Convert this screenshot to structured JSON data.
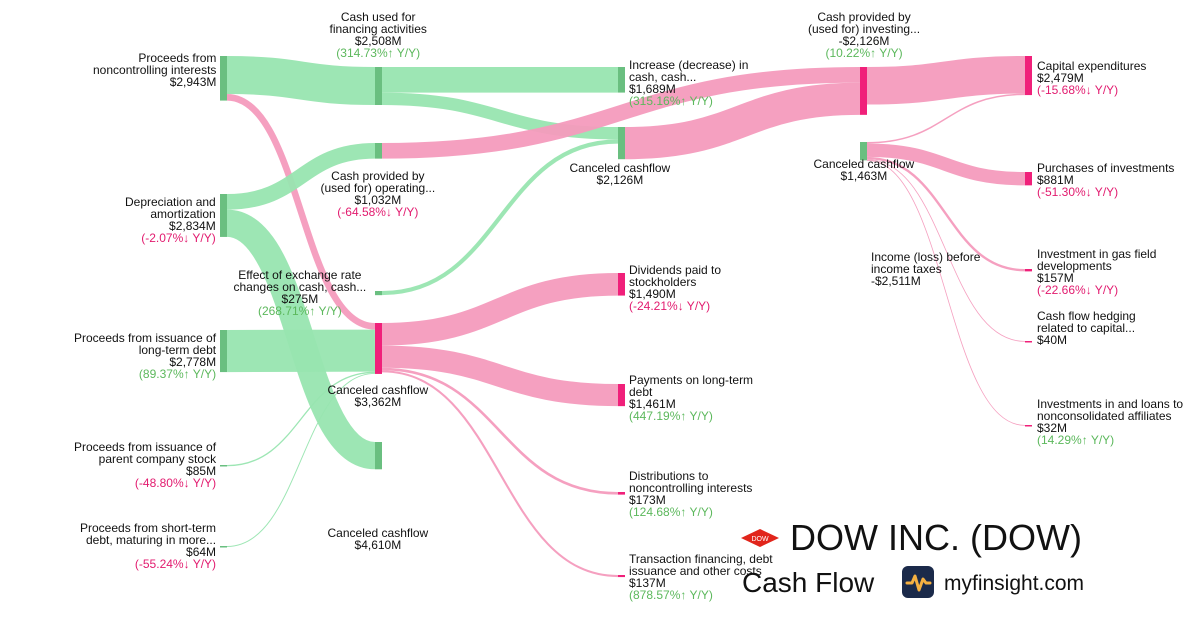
{
  "brand": {
    "company": "DOW INC. (DOW)",
    "statement": "Cash Flow",
    "site": "myfinsight.com",
    "logo_text": "DOW",
    "icon": "pulse-icon"
  },
  "colors": {
    "inflow": "#98e5b0",
    "outflow": "#f49bbd",
    "positive": "#5cb85c",
    "negative": "#e21b6f",
    "node_green": "#6abf80",
    "node_pink": "#f0207a"
  },
  "chart_data": {
    "type": "sankey",
    "units": "USD millions",
    "nodes": [
      {
        "id": "ncI",
        "name": "Proceeds from noncontrolling interests",
        "label": [
          "Proceeds from",
          "noncontrolling interests"
        ],
        "value": "$2,943M",
        "yoy": ""
      },
      {
        "id": "dep",
        "name": "Depreciation and amortization",
        "label": [
          "Depreciation and",
          "amortization"
        ],
        "value": "$2,834M",
        "yoy": "(-2.07%↓ Y/Y)",
        "yoy_sign": "neg"
      },
      {
        "id": "fx",
        "name": "Effect of exchange rate changes on cash, cash...",
        "label": [
          "Effect of exchange rate",
          "changes on cash, cash..."
        ],
        "value": "$275M",
        "yoy": "(268.71%↑ Y/Y)",
        "yoy_sign": "pos"
      },
      {
        "id": "ltd",
        "name": "Proceeds from issuance of long-term debt",
        "label": [
          "Proceeds from issuance of",
          "long-term debt"
        ],
        "value": "$2,778M",
        "yoy": "(89.37%↑ Y/Y)",
        "yoy_sign": "pos"
      },
      {
        "id": "pcs",
        "name": "Proceeds from issuance of parent company stock",
        "label": [
          "Proceeds from issuance of",
          "parent company stock"
        ],
        "value": "$85M",
        "yoy": "(-48.80%↓ Y/Y)",
        "yoy_sign": "neg"
      },
      {
        "id": "std",
        "name": "Proceeds from short-term debt, maturing in more...",
        "label": [
          "Proceeds from short-term",
          "debt, maturing in more..."
        ],
        "value": "$64M",
        "yoy": "(-55.24%↓ Y/Y)",
        "yoy_sign": "neg"
      },
      {
        "id": "fin",
        "name": "Cash used for financing activities",
        "label": [
          "Cash used for",
          "financing activities"
        ],
        "value": "$2,508M",
        "yoy": "(314.73%↑ Y/Y)",
        "yoy_sign": "pos"
      },
      {
        "id": "ops",
        "name": "Cash provided by (used for) operating...",
        "label": [
          "Cash provided by",
          "(used for) operating..."
        ],
        "value": "$1,032M",
        "yoy": "(-64.58%↓ Y/Y)",
        "yoy_sign": "neg"
      },
      {
        "id": "cc1",
        "name": "Canceled cashflow",
        "label": [
          "Canceled cashflow"
        ],
        "value": "$3,362M",
        "yoy": ""
      },
      {
        "id": "cc2",
        "name": "Canceled cashflow",
        "label": [
          "Canceled cashflow"
        ],
        "value": "$4,610M",
        "yoy": ""
      },
      {
        "id": "inc",
        "name": "Increase (decrease) in cash, cash...",
        "label": [
          "Increase (decrease) in",
          "cash, cash..."
        ],
        "value": "$1,689M",
        "yoy": "(315.16%↑ Y/Y)",
        "yoy_sign": "pos"
      },
      {
        "id": "cc3",
        "name": "Canceled cashflow",
        "label": [
          "Canceled cashflow"
        ],
        "value": "$2,126M",
        "yoy": ""
      },
      {
        "id": "div",
        "name": "Dividends paid to stockholders",
        "label": [
          "Dividends paid to",
          "stockholders"
        ],
        "value": "$1,490M",
        "yoy": "(-24.21%↓ Y/Y)",
        "yoy_sign": "neg"
      },
      {
        "id": "pay",
        "name": "Payments on long-term debt",
        "label": [
          "Payments on long-term",
          "debt"
        ],
        "value": "$1,461M",
        "yoy": "(447.19%↑ Y/Y)",
        "yoy_sign": "pos"
      },
      {
        "id": "dist",
        "name": "Distributions to noncontrolling interests",
        "label": [
          "Distributions to",
          "noncontrolling interests"
        ],
        "value": "$173M",
        "yoy": "(124.68%↑ Y/Y)",
        "yoy_sign": "pos"
      },
      {
        "id": "tfc",
        "name": "Transaction financing, debt issuance and other costs",
        "label": [
          "Transaction financing, debt",
          "issuance and other costs"
        ],
        "value": "$137M",
        "yoy": "(878.57%↑ Y/Y)",
        "yoy_sign": "pos"
      },
      {
        "id": "inv",
        "name": "Cash provided by (used for) investing...",
        "label": [
          "Cash provided by",
          "(used for) investing..."
        ],
        "value": "-$2,126M",
        "yoy": "(10.22%↑ Y/Y)",
        "yoy_sign": "pos"
      },
      {
        "id": "cc4",
        "name": "Canceled cashflow",
        "label": [
          "Canceled cashflow"
        ],
        "value": "$1,463M",
        "yoy": ""
      },
      {
        "id": "ibt",
        "name": "Income (loss) before income taxes",
        "label": [
          "Income (loss) before",
          "income taxes"
        ],
        "value": "-$2,511M",
        "yoy": ""
      },
      {
        "id": "capex",
        "name": "Capital expenditures",
        "label": [
          "Capital expenditures"
        ],
        "value": "$2,479M",
        "yoy": "(-15.68%↓ Y/Y)",
        "yoy_sign": "neg"
      },
      {
        "id": "poi",
        "name": "Purchases of investments",
        "label": [
          "Purchases of investments"
        ],
        "value": "$881M",
        "yoy": "(-51.30%↓ Y/Y)",
        "yoy_sign": "neg"
      },
      {
        "id": "gas",
        "name": "Investment in gas field developments",
        "label": [
          "Investment in gas field",
          "developments"
        ],
        "value": "$157M",
        "yoy": "(-22.66%↓ Y/Y)",
        "yoy_sign": "neg"
      },
      {
        "id": "hedge",
        "name": "Cash flow hedging related to capital...",
        "label": [
          "Cash flow hedging",
          "related to capital..."
        ],
        "value": "$40M",
        "yoy": ""
      },
      {
        "id": "nca",
        "name": "Investments in and loans to nonconsolidated affiliates",
        "label": [
          "Investments in and loans to",
          "nonconsolidated affiliates"
        ],
        "value": "$32M",
        "yoy": "(14.29%↑ Y/Y)",
        "yoy_sign": "pos"
      }
    ],
    "links": [
      {
        "source": "ncI",
        "target": "fin",
        "value": 2508
      },
      {
        "source": "ncI",
        "target": "cc1",
        "value": 435
      },
      {
        "source": "dep",
        "target": "ops",
        "value": 1032
      },
      {
        "source": "dep",
        "target": "cc2",
        "value": 1802
      },
      {
        "source": "ltd",
        "target": "cc1",
        "value": 2778
      },
      {
        "source": "pcs",
        "target": "cc1",
        "value": 85
      },
      {
        "source": "std",
        "target": "cc1",
        "value": 64
      },
      {
        "source": "fin",
        "target": "inc",
        "value": 1689
      },
      {
        "source": "fin",
        "target": "cc3",
        "value": 819
      },
      {
        "source": "ops",
        "target": "inv",
        "value": 1032
      },
      {
        "source": "fx",
        "target": "cc3",
        "value": 275
      },
      {
        "source": "cc3",
        "target": "inv",
        "value": 2126
      },
      {
        "source": "cc1",
        "target": "div",
        "value": 1490
      },
      {
        "source": "cc1",
        "target": "pay",
        "value": 1461
      },
      {
        "source": "cc1",
        "target": "dist",
        "value": 173
      },
      {
        "source": "cc1",
        "target": "tfc",
        "value": 137
      },
      {
        "source": "inv",
        "target": "capex",
        "value": 2479
      },
      {
        "source": "cc4",
        "target": "capex",
        "value": 100
      },
      {
        "source": "cc4",
        "target": "poi",
        "value": 881
      },
      {
        "source": "cc4",
        "target": "gas",
        "value": 157
      },
      {
        "source": "cc4",
        "target": "hedge",
        "value": 40
      },
      {
        "source": "cc4",
        "target": "nca",
        "value": 32
      }
    ]
  }
}
